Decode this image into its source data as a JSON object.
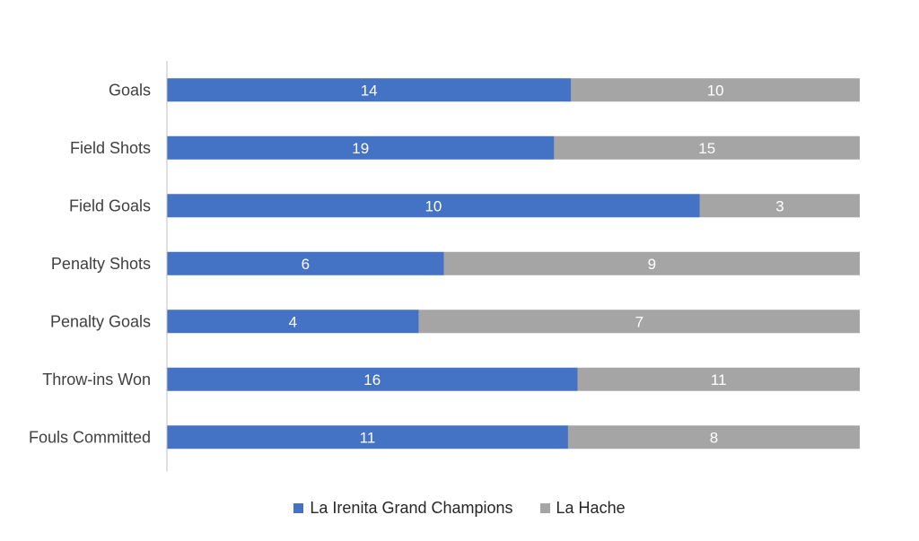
{
  "chart_data": {
    "type": "bar",
    "orientation": "horizontal",
    "stacking": "percent",
    "title": "",
    "xlabel": "",
    "ylabel": "",
    "categories": [
      "Goals",
      "Field Shots",
      "Field Goals",
      "Penalty Shots",
      "Penalty Goals",
      "Throw-ins Won",
      "Fouls Committed"
    ],
    "series": [
      {
        "name": "La Irenita Grand Champions",
        "color": "#4472c4",
        "values": [
          14,
          19,
          10,
          6,
          4,
          16,
          11
        ]
      },
      {
        "name": "La Hache",
        "color": "#a5a5a5",
        "values": [
          10,
          15,
          3,
          9,
          7,
          11,
          8
        ]
      }
    ],
    "data_labels": true,
    "grid": false,
    "legend_position": "bottom"
  }
}
